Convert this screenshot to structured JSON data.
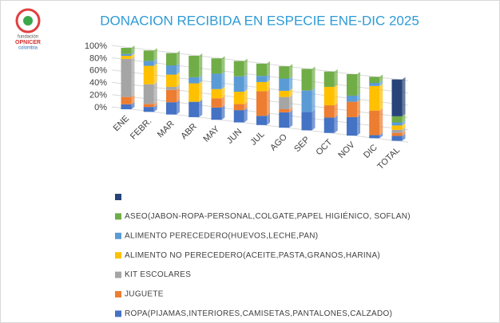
{
  "logo": {
    "line1": "fundación",
    "line2": "OPNICER",
    "line3": "colombia"
  },
  "chart_data": {
    "type": "bar",
    "stacked": true,
    "title": "DONACION RECIBIDA EN ESPECIE ENE-DIC 2025",
    "categories": [
      "ENE",
      "FEBR.",
      "MAR",
      "ABR",
      "MAY",
      "JUN",
      "JUL",
      "AGO",
      "SEP",
      "OCT",
      "NOV",
      "DIC",
      "TOTAL"
    ],
    "ylim": [
      0,
      100
    ],
    "yticks": [
      {
        "value": 0,
        "label": "0%"
      },
      {
        "value": 20,
        "label": "20%"
      },
      {
        "value": 40,
        "label": "40%"
      },
      {
        "value": 60,
        "label": "60%"
      },
      {
        "value": 80,
        "label": "80%"
      },
      {
        "value": 100,
        "label": "100%"
      }
    ],
    "grid": true,
    "series": [
      {
        "name": "ROPA(PIJAMAS,INTERIORES,CAMISETAS,PANTALONES,CALZADO)",
        "color": "#4472c4",
        "values": [
          8,
          8,
          20,
          25,
          20,
          20,
          15,
          25,
          30,
          25,
          30,
          5,
          8
        ]
      },
      {
        "name": "JUGUETE",
        "color": "#ed7d31",
        "values": [
          12,
          5,
          20,
          0,
          15,
          10,
          40,
          5,
          0,
          20,
          25,
          40,
          5
        ]
      },
      {
        "name": "KIT ESCOLARES",
        "color": "#a5a5a5",
        "values": [
          62,
          32,
          5,
          0,
          0,
          0,
          0,
          20,
          0,
          0,
          0,
          0,
          5
        ]
      },
      {
        "name": "ALIMENTO NO PERECEDERO(ACEITE,PASTA,GRANOS,HARINA)",
        "color": "#ffc000",
        "values": [
          5,
          30,
          20,
          30,
          15,
          20,
          15,
          10,
          0,
          30,
          0,
          40,
          7
        ]
      },
      {
        "name": "ALIMENTO PERECEDERO(HUEVOS,LECHE,PAN)",
        "color": "#5b9bd5",
        "values": [
          3,
          8,
          15,
          10,
          25,
          25,
          10,
          20,
          35,
          0,
          10,
          5,
          5
        ]
      },
      {
        "name": "ASEO(JABON-ROPA-PERSONAL,COLGATE,PAPEL HIGIÉNICO, SOFLAN)",
        "color": "#70ad47",
        "values": [
          10,
          17,
          20,
          35,
          25,
          25,
          20,
          20,
          35,
          25,
          35,
          10,
          10
        ]
      },
      {
        "name": null,
        "color": "#264478",
        "values": [
          0,
          0,
          0,
          0,
          0,
          0,
          0,
          0,
          0,
          0,
          0,
          0,
          60
        ]
      }
    ]
  }
}
